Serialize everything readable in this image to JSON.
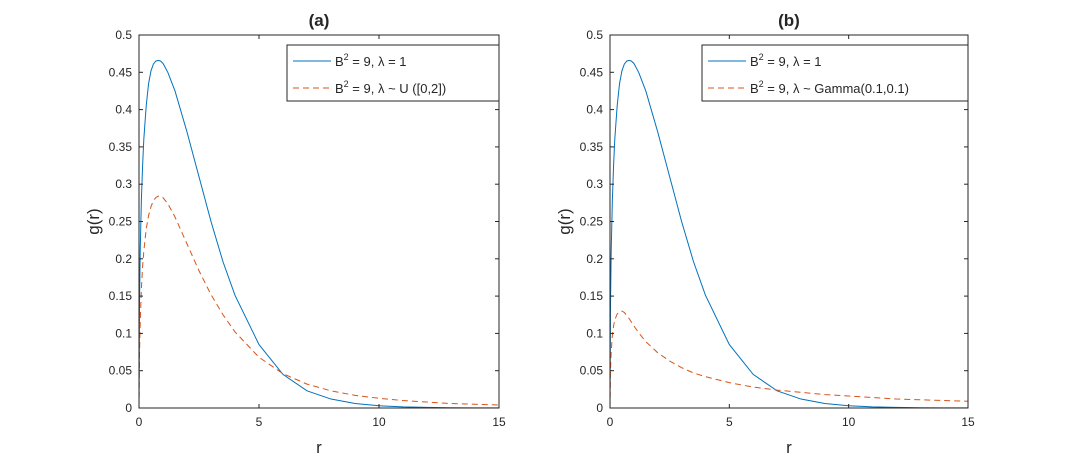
{
  "colors": {
    "series1": "#0072bd",
    "series2": "#d95319",
    "axis": "#262626"
  },
  "chart_data": [
    {
      "type": "line",
      "title": "(a)",
      "xlabel": "r",
      "ylabel": "g(r)",
      "xlim": [
        0,
        15
      ],
      "ylim": [
        0,
        0.5
      ],
      "xticks": [
        0,
        5,
        10,
        15
      ],
      "xtick_labels": [
        "0",
        "5",
        "10",
        "15"
      ],
      "yticks": [
        0,
        0.05,
        0.1,
        0.15,
        0.2,
        0.25,
        0.3,
        0.35,
        0.4,
        0.45,
        0.5
      ],
      "ytick_labels": [
        "0",
        "0.05",
        "0.1",
        "0.15",
        "0.2",
        "0.25",
        "0.3",
        "0.35",
        "0.4",
        "0.45",
        "0.5"
      ],
      "grid": false,
      "legend_position": "top-right",
      "series": [
        {
          "name": "B² = 9, λ = 1",
          "legend": {
            "pre": "B",
            "sup": "2",
            "post": " = 9,  λ = 1"
          },
          "style": "solid",
          "x": [
            0,
            0.02,
            0.05,
            0.1,
            0.15,
            0.2,
            0.3,
            0.4,
            0.5,
            0.6,
            0.7,
            0.8,
            0.9,
            1.0,
            1.2,
            1.5,
            2,
            2.5,
            3,
            3.5,
            4,
            5,
            6,
            7,
            8,
            9,
            10,
            11,
            12,
            13,
            14,
            15
          ],
          "y": [
            0,
            0.135,
            0.21,
            0.28,
            0.325,
            0.36,
            0.405,
            0.435,
            0.452,
            0.461,
            0.465,
            0.466,
            0.465,
            0.462,
            0.45,
            0.425,
            0.37,
            0.31,
            0.25,
            0.196,
            0.151,
            0.085,
            0.045,
            0.023,
            0.012,
            0.006,
            0.003,
            0.0015,
            0.0008,
            0.0004,
            0.0002,
            0.0001
          ]
        },
        {
          "name": "B² = 9, λ ~ U ([0,2])",
          "legend": {
            "pre": "B",
            "sup": "2",
            "post": " = 9,  λ ~ U ([0,2])"
          },
          "style": "dashed",
          "x": [
            0,
            0.02,
            0.05,
            0.1,
            0.15,
            0.2,
            0.3,
            0.4,
            0.5,
            0.6,
            0.7,
            0.8,
            0.9,
            1.0,
            1.2,
            1.5,
            2,
            2.5,
            3,
            3.5,
            4,
            5,
            6,
            7,
            8,
            9,
            10,
            11,
            12,
            13,
            14,
            15
          ],
          "y": [
            0,
            0.07,
            0.115,
            0.16,
            0.19,
            0.21,
            0.24,
            0.258,
            0.27,
            0.278,
            0.282,
            0.284,
            0.284,
            0.282,
            0.274,
            0.256,
            0.22,
            0.184,
            0.152,
            0.125,
            0.102,
            0.068,
            0.046,
            0.032,
            0.023,
            0.017,
            0.013,
            0.01,
            0.008,
            0.006,
            0.005,
            0.004
          ]
        }
      ]
    },
    {
      "type": "line",
      "title": "(b)",
      "xlabel": "r",
      "ylabel": "g(r)",
      "xlim": [
        0,
        15
      ],
      "ylim": [
        0,
        0.5
      ],
      "xticks": [
        0,
        5,
        10,
        15
      ],
      "xtick_labels": [
        "0",
        "5",
        "10",
        "15"
      ],
      "yticks": [
        0,
        0.05,
        0.1,
        0.15,
        0.2,
        0.25,
        0.3,
        0.35,
        0.4,
        0.45,
        0.5
      ],
      "ytick_labels": [
        "0",
        "0.05",
        "0.1",
        "0.15",
        "0.2",
        "0.25",
        "0.3",
        "0.35",
        "0.4",
        "0.45",
        "0.5"
      ],
      "grid": false,
      "legend_position": "top-right",
      "series": [
        {
          "name": "B² = 9, λ = 1",
          "legend": {
            "pre": "B",
            "sup": "2",
            "post": " = 9,  λ = 1"
          },
          "style": "solid",
          "x": [
            0,
            0.02,
            0.05,
            0.1,
            0.15,
            0.2,
            0.3,
            0.4,
            0.5,
            0.6,
            0.7,
            0.8,
            0.9,
            1.0,
            1.2,
            1.5,
            2,
            2.5,
            3,
            3.5,
            4,
            5,
            6,
            7,
            8,
            9,
            10,
            11,
            12,
            13,
            14,
            15
          ],
          "y": [
            0,
            0.135,
            0.21,
            0.28,
            0.325,
            0.36,
            0.405,
            0.435,
            0.452,
            0.461,
            0.465,
            0.466,
            0.465,
            0.462,
            0.45,
            0.425,
            0.37,
            0.31,
            0.25,
            0.196,
            0.151,
            0.085,
            0.045,
            0.023,
            0.012,
            0.006,
            0.003,
            0.0015,
            0.0008,
            0.0004,
            0.0002,
            0.0001
          ]
        },
        {
          "name": "B² = 9, λ ~ Gamma(0.1,0.1)",
          "legend": {
            "pre": "B",
            "sup": "2",
            "post": " = 9,  λ ~ Gamma(0.1,0.1)"
          },
          "style": "dashed",
          "x": [
            0,
            0.02,
            0.05,
            0.1,
            0.15,
            0.2,
            0.3,
            0.4,
            0.5,
            0.6,
            0.7,
            0.8,
            1.0,
            1.2,
            1.5,
            2,
            2.5,
            3,
            3.5,
            4,
            5,
            6,
            7,
            8,
            9,
            10,
            11,
            12,
            13,
            14,
            15
          ],
          "y": [
            0,
            0.05,
            0.075,
            0.098,
            0.11,
            0.118,
            0.126,
            0.129,
            0.13,
            0.128,
            0.124,
            0.12,
            0.11,
            0.101,
            0.089,
            0.074,
            0.063,
            0.054,
            0.047,
            0.042,
            0.034,
            0.028,
            0.024,
            0.021,
            0.018,
            0.016,
            0.014,
            0.012,
            0.011,
            0.01,
            0.009
          ]
        }
      ]
    }
  ]
}
